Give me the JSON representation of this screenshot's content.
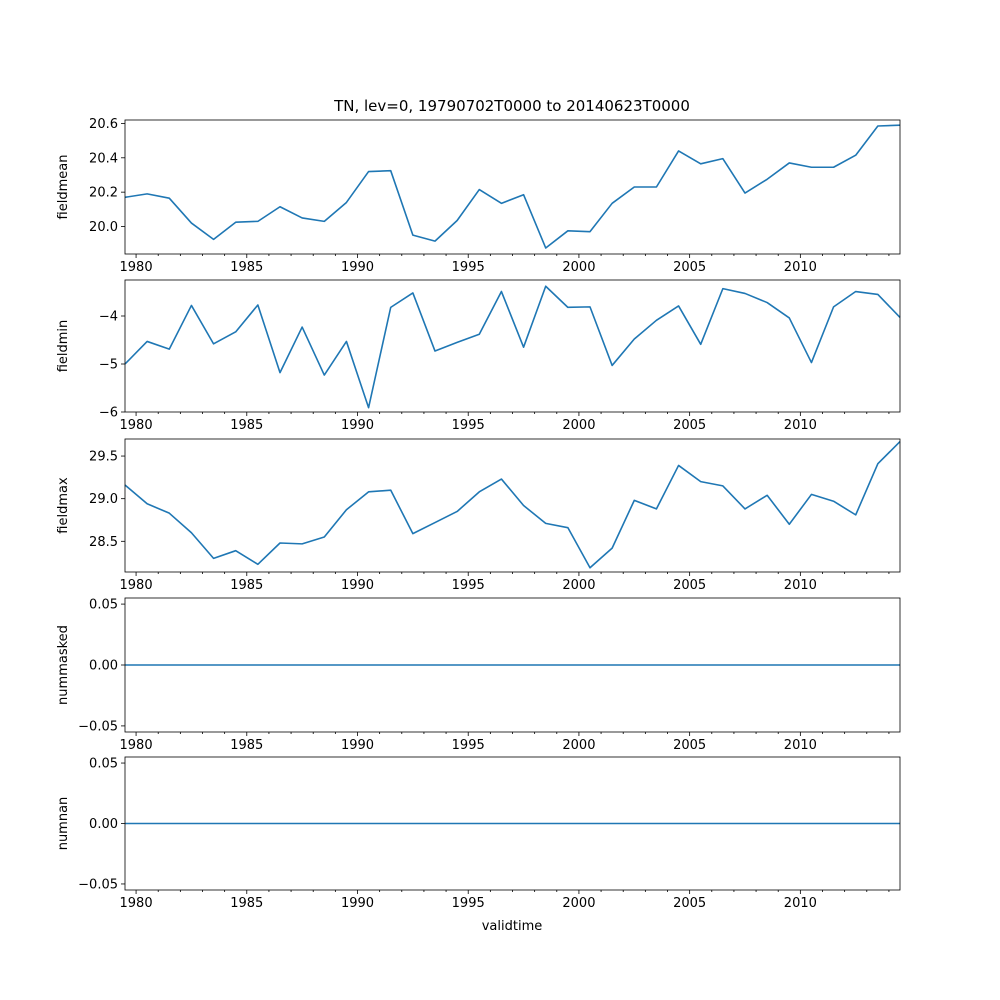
{
  "figure": {
    "title": "TN, lev=0, 19790702T0000 to 20140623T0000",
    "xlabel": "validtime"
  },
  "chart_data": [
    {
      "type": "line",
      "ylabel": "fieldmean",
      "color": "#1f77b4",
      "x": [
        1979.5,
        1980.5,
        1981.5,
        1982.5,
        1983.5,
        1984.5,
        1985.5,
        1986.5,
        1987.5,
        1988.5,
        1989.5,
        1990.5,
        1991.5,
        1992.5,
        1993.5,
        1994.5,
        1995.5,
        1996.5,
        1997.5,
        1998.5,
        1999.5,
        2000.5,
        2001.5,
        2002.5,
        2003.5,
        2004.5,
        2005.5,
        2006.5,
        2007.5,
        2008.5,
        2009.5,
        2010.5,
        2011.5,
        2012.5,
        2013.5,
        2014.5
      ],
      "y": [
        20.17,
        20.19,
        20.165,
        20.02,
        19.925,
        20.025,
        20.03,
        20.115,
        20.05,
        20.03,
        20.14,
        20.32,
        20.325,
        19.95,
        19.915,
        20.035,
        20.215,
        20.135,
        20.185,
        19.875,
        19.975,
        19.97,
        20.135,
        20.23,
        20.23,
        20.44,
        20.365,
        20.395,
        20.195,
        20.275,
        20.37,
        20.345,
        20.345,
        20.415,
        20.585,
        20.59
      ],
      "xlim": [
        1979.5,
        2014.5
      ],
      "ylim": [
        19.84,
        20.62
      ],
      "yticks": [
        20.0,
        20.2,
        20.4,
        20.6
      ],
      "ytick_labels": [
        "20.0",
        "20.2",
        "20.4",
        "20.6"
      ],
      "xticks": [
        1980,
        1985,
        1990,
        1995,
        2000,
        2005,
        2010
      ],
      "xtick_labels": [
        "1980",
        "1985",
        "1990",
        "1995",
        "2000",
        "2005",
        "2010"
      ]
    },
    {
      "type": "line",
      "ylabel": "fieldmin",
      "color": "#1f77b4",
      "x": [
        1979.5,
        1980.5,
        1981.5,
        1982.5,
        1983.5,
        1984.5,
        1985.5,
        1986.5,
        1987.5,
        1988.5,
        1989.5,
        1990.5,
        1991.5,
        1992.5,
        1993.5,
        1994.5,
        1995.5,
        1996.5,
        1997.5,
        1998.5,
        1999.5,
        2000.5,
        2001.5,
        2002.5,
        2003.5,
        2004.5,
        2005.5,
        2006.5,
        2007.5,
        2008.5,
        2009.5,
        2010.5,
        2011.5,
        2012.5,
        2013.5,
        2014.5
      ],
      "y": [
        -5.0,
        -4.53,
        -4.69,
        -3.78,
        -4.58,
        -4.33,
        -3.77,
        -5.18,
        -4.23,
        -5.23,
        -4.53,
        -5.91,
        -3.82,
        -3.52,
        -4.73,
        -4.55,
        -4.38,
        -3.49,
        -4.65,
        -3.38,
        -3.82,
        -3.81,
        -5.03,
        -4.48,
        -4.09,
        -3.79,
        -4.59,
        -3.43,
        -3.53,
        -3.72,
        -4.04,
        -4.97,
        -3.81,
        -3.49,
        -3.55,
        -4.03
      ],
      "xlim": [
        1979.5,
        2014.5
      ],
      "ylim": [
        -6.0,
        -3.25
      ],
      "yticks": [
        -6,
        -5,
        -4
      ],
      "ytick_labels": [
        "−6",
        "−5",
        "−4"
      ],
      "xticks": [
        1980,
        1985,
        1990,
        1995,
        2000,
        2005,
        2010
      ],
      "xtick_labels": [
        "1980",
        "1985",
        "1990",
        "1995",
        "2000",
        "2005",
        "2010"
      ]
    },
    {
      "type": "line",
      "ylabel": "fieldmax",
      "color": "#1f77b4",
      "x": [
        1979.5,
        1980.5,
        1981.5,
        1982.5,
        1983.5,
        1984.5,
        1985.5,
        1986.5,
        1987.5,
        1988.5,
        1989.5,
        1990.5,
        1991.5,
        1992.5,
        1993.5,
        1994.5,
        1995.5,
        1996.5,
        1997.5,
        1998.5,
        1999.5,
        2000.5,
        2001.5,
        2002.5,
        2003.5,
        2004.5,
        2005.5,
        2006.5,
        2007.5,
        2008.5,
        2009.5,
        2010.5,
        2011.5,
        2012.5,
        2013.5,
        2014.5
      ],
      "y": [
        29.16,
        28.94,
        28.83,
        28.6,
        28.3,
        28.39,
        28.23,
        28.48,
        28.47,
        28.55,
        28.87,
        29.08,
        29.1,
        28.59,
        28.72,
        28.85,
        29.08,
        29.23,
        28.92,
        28.71,
        28.66,
        28.19,
        28.42,
        28.98,
        28.88,
        29.39,
        29.2,
        29.15,
        28.88,
        29.04,
        28.7,
        29.05,
        28.97,
        28.81,
        29.41,
        29.67
      ],
      "xlim": [
        1979.5,
        2014.5
      ],
      "ylim": [
        28.14,
        29.7
      ],
      "yticks": [
        28.5,
        29.0,
        29.5
      ],
      "ytick_labels": [
        "28.5",
        "29.0",
        "29.5"
      ],
      "xticks": [
        1980,
        1985,
        1990,
        1995,
        2000,
        2005,
        2010
      ],
      "xtick_labels": [
        "1980",
        "1985",
        "1990",
        "1995",
        "2000",
        "2005",
        "2010"
      ]
    },
    {
      "type": "line",
      "ylabel": "nummasked",
      "color": "#1f77b4",
      "x": [
        1979.5,
        1980.5,
        1981.5,
        1982.5,
        1983.5,
        1984.5,
        1985.5,
        1986.5,
        1987.5,
        1988.5,
        1989.5,
        1990.5,
        1991.5,
        1992.5,
        1993.5,
        1994.5,
        1995.5,
        1996.5,
        1997.5,
        1998.5,
        1999.5,
        2000.5,
        2001.5,
        2002.5,
        2003.5,
        2004.5,
        2005.5,
        2006.5,
        2007.5,
        2008.5,
        2009.5,
        2010.5,
        2011.5,
        2012.5,
        2013.5,
        2014.5
      ],
      "y": [
        0,
        0,
        0,
        0,
        0,
        0,
        0,
        0,
        0,
        0,
        0,
        0,
        0,
        0,
        0,
        0,
        0,
        0,
        0,
        0,
        0,
        0,
        0,
        0,
        0,
        0,
        0,
        0,
        0,
        0,
        0,
        0,
        0,
        0,
        0,
        0
      ],
      "xlim": [
        1979.5,
        2014.5
      ],
      "ylim": [
        -0.055,
        0.055
      ],
      "yticks": [
        -0.05,
        0.0,
        0.05
      ],
      "ytick_labels": [
        "−0.05",
        "0.00",
        "0.05"
      ],
      "xticks": [
        1980,
        1985,
        1990,
        1995,
        2000,
        2005,
        2010
      ],
      "xtick_labels": [
        "1980",
        "1985",
        "1990",
        "1995",
        "2000",
        "2005",
        "2010"
      ]
    },
    {
      "type": "line",
      "ylabel": "numnan",
      "color": "#1f77b4",
      "x": [
        1979.5,
        1980.5,
        1981.5,
        1982.5,
        1983.5,
        1984.5,
        1985.5,
        1986.5,
        1987.5,
        1988.5,
        1989.5,
        1990.5,
        1991.5,
        1992.5,
        1993.5,
        1994.5,
        1995.5,
        1996.5,
        1997.5,
        1998.5,
        1999.5,
        2000.5,
        2001.5,
        2002.5,
        2003.5,
        2004.5,
        2005.5,
        2006.5,
        2007.5,
        2008.5,
        2009.5,
        2010.5,
        2011.5,
        2012.5,
        2013.5,
        2014.5
      ],
      "y": [
        0,
        0,
        0,
        0,
        0,
        0,
        0,
        0,
        0,
        0,
        0,
        0,
        0,
        0,
        0,
        0,
        0,
        0,
        0,
        0,
        0,
        0,
        0,
        0,
        0,
        0,
        0,
        0,
        0,
        0,
        0,
        0,
        0,
        0,
        0,
        0
      ],
      "xlim": [
        1979.5,
        2014.5
      ],
      "ylim": [
        -0.055,
        0.055
      ],
      "yticks": [
        -0.05,
        0.0,
        0.05
      ],
      "ytick_labels": [
        "−0.05",
        "0.00",
        "0.05"
      ],
      "xticks": [
        1980,
        1985,
        1990,
        1995,
        2000,
        2005,
        2010
      ],
      "xtick_labels": [
        "1980",
        "1985",
        "1990",
        "1995",
        "2000",
        "2005",
        "2010"
      ]
    }
  ]
}
